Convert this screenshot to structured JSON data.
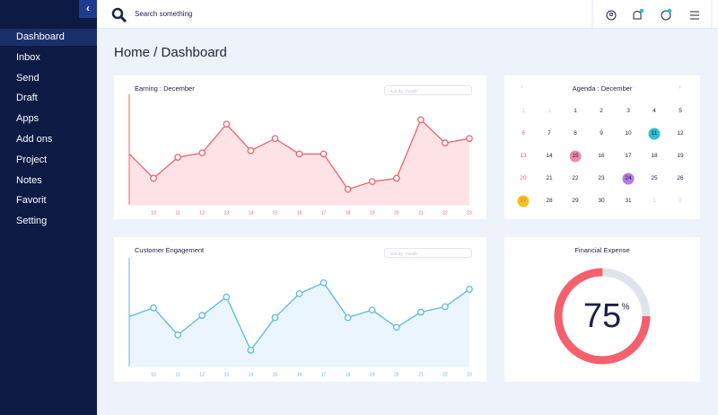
{
  "sidebar": {
    "items": [
      "Dashboard",
      "Inbox",
      "Send",
      "Draft",
      "Apps",
      "Add ons",
      "Project",
      "Notes",
      "Favorit",
      "Setting"
    ]
  },
  "search": {
    "placeholder": "Search something"
  },
  "breadcrumb": "Home / Dashboard",
  "earning_chart": {
    "type": "area",
    "title": "Earning : December",
    "sort_label": "sort by : month",
    "categories": [
      null,
      "10",
      "11",
      "12",
      "13",
      "14",
      "15",
      "16",
      "17",
      "18",
      "19",
      "20",
      "21",
      "22",
      "23"
    ],
    "values": [
      46,
      24,
      43,
      47,
      73,
      49,
      60,
      46,
      46,
      14,
      21,
      24,
      77,
      56,
      60
    ],
    "color": "#f0606f",
    "fill": "#fde3e6",
    "ylim": [
      0,
      100
    ]
  },
  "engagement_chart": {
    "type": "area",
    "title": "Customer Engagement",
    "sort_label": "sort by : month",
    "categories": [
      null,
      "10",
      "11",
      "12",
      "13",
      "14",
      "15",
      "16",
      "17",
      "18",
      "19",
      "20",
      "21",
      "22",
      "23"
    ],
    "values": [
      46,
      54,
      29,
      47,
      64,
      15,
      45,
      67,
      77,
      45,
      52,
      36,
      50,
      55,
      71
    ],
    "color": "#5bb8e6",
    "fill": "#eaf5fd",
    "ylim": [
      0,
      100
    ]
  },
  "agenda": {
    "title": "Agenda : December",
    "weeks": [
      [
        {
          "text": "1",
          "muted": true
        },
        {
          "text": "1",
          "muted": true
        },
        {
          "text": "1"
        },
        {
          "text": "2"
        },
        {
          "text": "3"
        },
        {
          "text": "4"
        },
        {
          "text": "5"
        }
      ],
      [
        {
          "text": "6"
        },
        {
          "text": "7"
        },
        {
          "text": "8"
        },
        {
          "text": "9"
        },
        {
          "text": "10"
        },
        {
          "text": "11",
          "badge": "#2dbfd3"
        },
        {
          "text": "12"
        }
      ],
      [
        {
          "text": "13"
        },
        {
          "text": "14"
        },
        {
          "text": "15",
          "badge": "#f08aa8"
        },
        {
          "text": "16"
        },
        {
          "text": "17"
        },
        {
          "text": "18"
        },
        {
          "text": "19"
        }
      ],
      [
        {
          "text": "20"
        },
        {
          "text": "21"
        },
        {
          "text": "22"
        },
        {
          "text": "23"
        },
        {
          "text": "24",
          "badge": "#b978e0"
        },
        {
          "text": "25"
        },
        {
          "text": "26"
        }
      ],
      [
        {
          "text": "27",
          "badge": "#f6c21c"
        },
        {
          "text": "28"
        },
        {
          "text": "29"
        },
        {
          "text": "30"
        },
        {
          "text": "31"
        },
        {
          "text": "1",
          "muted": true
        },
        {
          "text": "2",
          "muted": true
        }
      ]
    ]
  },
  "financial_expense": {
    "type": "donut",
    "title": "Financial Expense",
    "value": 75,
    "unit": "%",
    "color": "#f5606e",
    "track_color": "#dfe4ec"
  }
}
